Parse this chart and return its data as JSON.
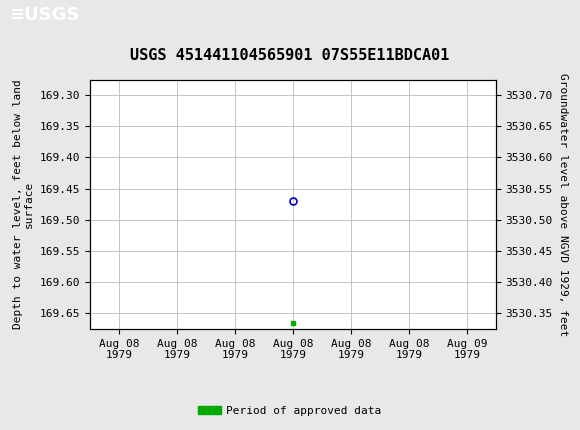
{
  "title": "USGS 451441104565901 07S55E11BDCA01",
  "ylabel_left": "Depth to water level, feet below land\nsurface",
  "ylabel_right": "Groundwater level above NGVD 1929, feet",
  "ylim_left": [
    169.675,
    169.275
  ],
  "ylim_right": [
    3530.325,
    3530.725
  ],
  "yticks_left": [
    169.3,
    169.35,
    169.4,
    169.45,
    169.5,
    169.55,
    169.6,
    169.65
  ],
  "yticks_right": [
    3530.7,
    3530.65,
    3530.6,
    3530.55,
    3530.5,
    3530.45,
    3530.4,
    3530.35
  ],
  "xtick_labels": [
    "Aug 08\n1979",
    "Aug 08\n1979",
    "Aug 08\n1979",
    "Aug 08\n1979",
    "Aug 08\n1979",
    "Aug 08\n1979",
    "Aug 09\n1979"
  ],
  "point_x": 3.0,
  "point_y": 169.47,
  "point_color": "#0000cc",
  "point_marker": "o",
  "point_size": 5,
  "green_square_x": 3.0,
  "green_square_y": 169.665,
  "green_color": "#00aa00",
  "background_color": "#e8e8e8",
  "plot_bg_color": "#ffffff",
  "grid_color": "#bbbbbb",
  "header_color": "#1a6b3c",
  "legend_label": "Period of approved data",
  "title_fontsize": 11,
  "axis_label_fontsize": 8,
  "tick_fontsize": 8,
  "font_family": "monospace",
  "xlim": [
    -0.5,
    6.5
  ],
  "num_xticks": 7
}
